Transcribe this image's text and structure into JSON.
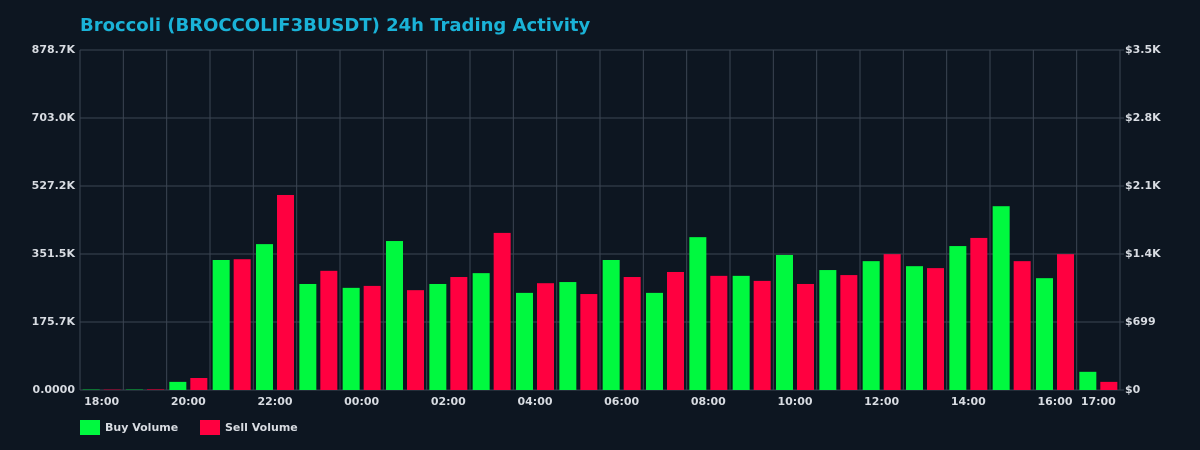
{
  "chart_data": {
    "type": "bar",
    "title": "Broccoli (BROCCOLIF3BUSDT) 24h Trading Activity",
    "categories": [
      "18:00",
      null,
      "20:00",
      null,
      "22:00",
      null,
      "00:00",
      null,
      "02:00",
      null,
      "04:00",
      null,
      "06:00",
      null,
      "08:00",
      null,
      "10:00",
      null,
      "12:00",
      null,
      "14:00",
      null,
      "16:00",
      "17:00"
    ],
    "series": [
      {
        "name": "Buy Volume",
        "color": "#00f93f",
        "values": [
          1000,
          1000,
          21000,
          336000,
          377000,
          274000,
          264000,
          385000,
          274000,
          302000,
          251000,
          279000,
          336000,
          251000,
          395000,
          295000,
          349000,
          310000,
          333000,
          320000,
          372000,
          475000,
          289000,
          47000
        ]
      },
      {
        "name": "Sell Volume",
        "color": "#ff0040",
        "values": [
          1000,
          1500,
          31000,
          338000,
          504000,
          308000,
          269000,
          258000,
          292000,
          406000,
          276000,
          248000,
          292000,
          305000,
          295000,
          282000,
          274000,
          297000,
          351000,
          315000,
          393000,
          333000,
          351000,
          21000
        ]
      }
    ],
    "ylim": [
      0,
      878700
    ],
    "yticks": [
      {
        "value": 0,
        "label": "0.0000"
      },
      {
        "value": 175700,
        "label": "175.7K"
      },
      {
        "value": 351500,
        "label": "351.5K"
      },
      {
        "value": 527200,
        "label": "527.2K"
      },
      {
        "value": 703000,
        "label": "703.0K"
      },
      {
        "value": 878700,
        "label": "878.7K"
      }
    ],
    "y2lim": [
      0,
      3495
    ],
    "y2ticks": [
      {
        "value": 0,
        "label": "$0"
      },
      {
        "value": 699,
        "label": "$699"
      },
      {
        "value": 1398,
        "label": "$1.4K"
      },
      {
        "value": 2097,
        "label": "$2.1K"
      },
      {
        "value": 2796,
        "label": "$2.8K"
      },
      {
        "value": 3495,
        "label": "$3.5K"
      }
    ],
    "grid": true
  }
}
